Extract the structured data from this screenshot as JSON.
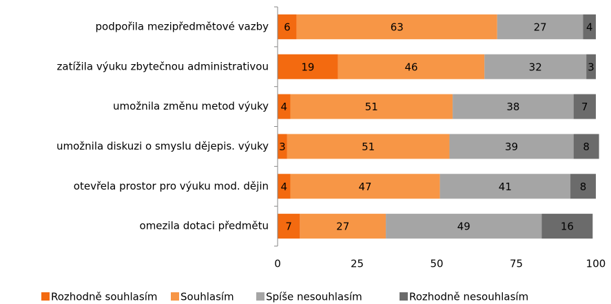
{
  "chart_data": {
    "type": "stacked_bar",
    "orientation": "horizontal",
    "categories": [
      "podpořila mezipředmětové vazby",
      "zatížila výuku zbytečnou administrativou",
      "umožnila změnu metod výuky",
      "umožnila diskuzi o smyslu dějepis. výuky",
      "otevřela prostor pro výuku mod. dějin",
      "omezila dotaci předmětu"
    ],
    "series": [
      {
        "name": "Rozhodně souhlasím",
        "color": "#f36a10",
        "values": [
          6,
          19,
          4,
          3,
          4,
          7
        ]
      },
      {
        "name": "Souhlasím",
        "color": "#f79646",
        "values": [
          63,
          46,
          51,
          51,
          47,
          27
        ]
      },
      {
        "name": "Spíše nesouhlasím",
        "color": "#a5a5a5",
        "values": [
          27,
          32,
          38,
          39,
          41,
          49
        ]
      },
      {
        "name": "Rozhodně nesouhlasím",
        "color": "#6b6b6b",
        "values": [
          4,
          3,
          7,
          8,
          8,
          16
        ]
      }
    ],
    "xlim": [
      0,
      100
    ],
    "xticks": [
      0,
      25,
      50,
      75,
      100
    ],
    "grid": false,
    "legend": "bottom"
  }
}
